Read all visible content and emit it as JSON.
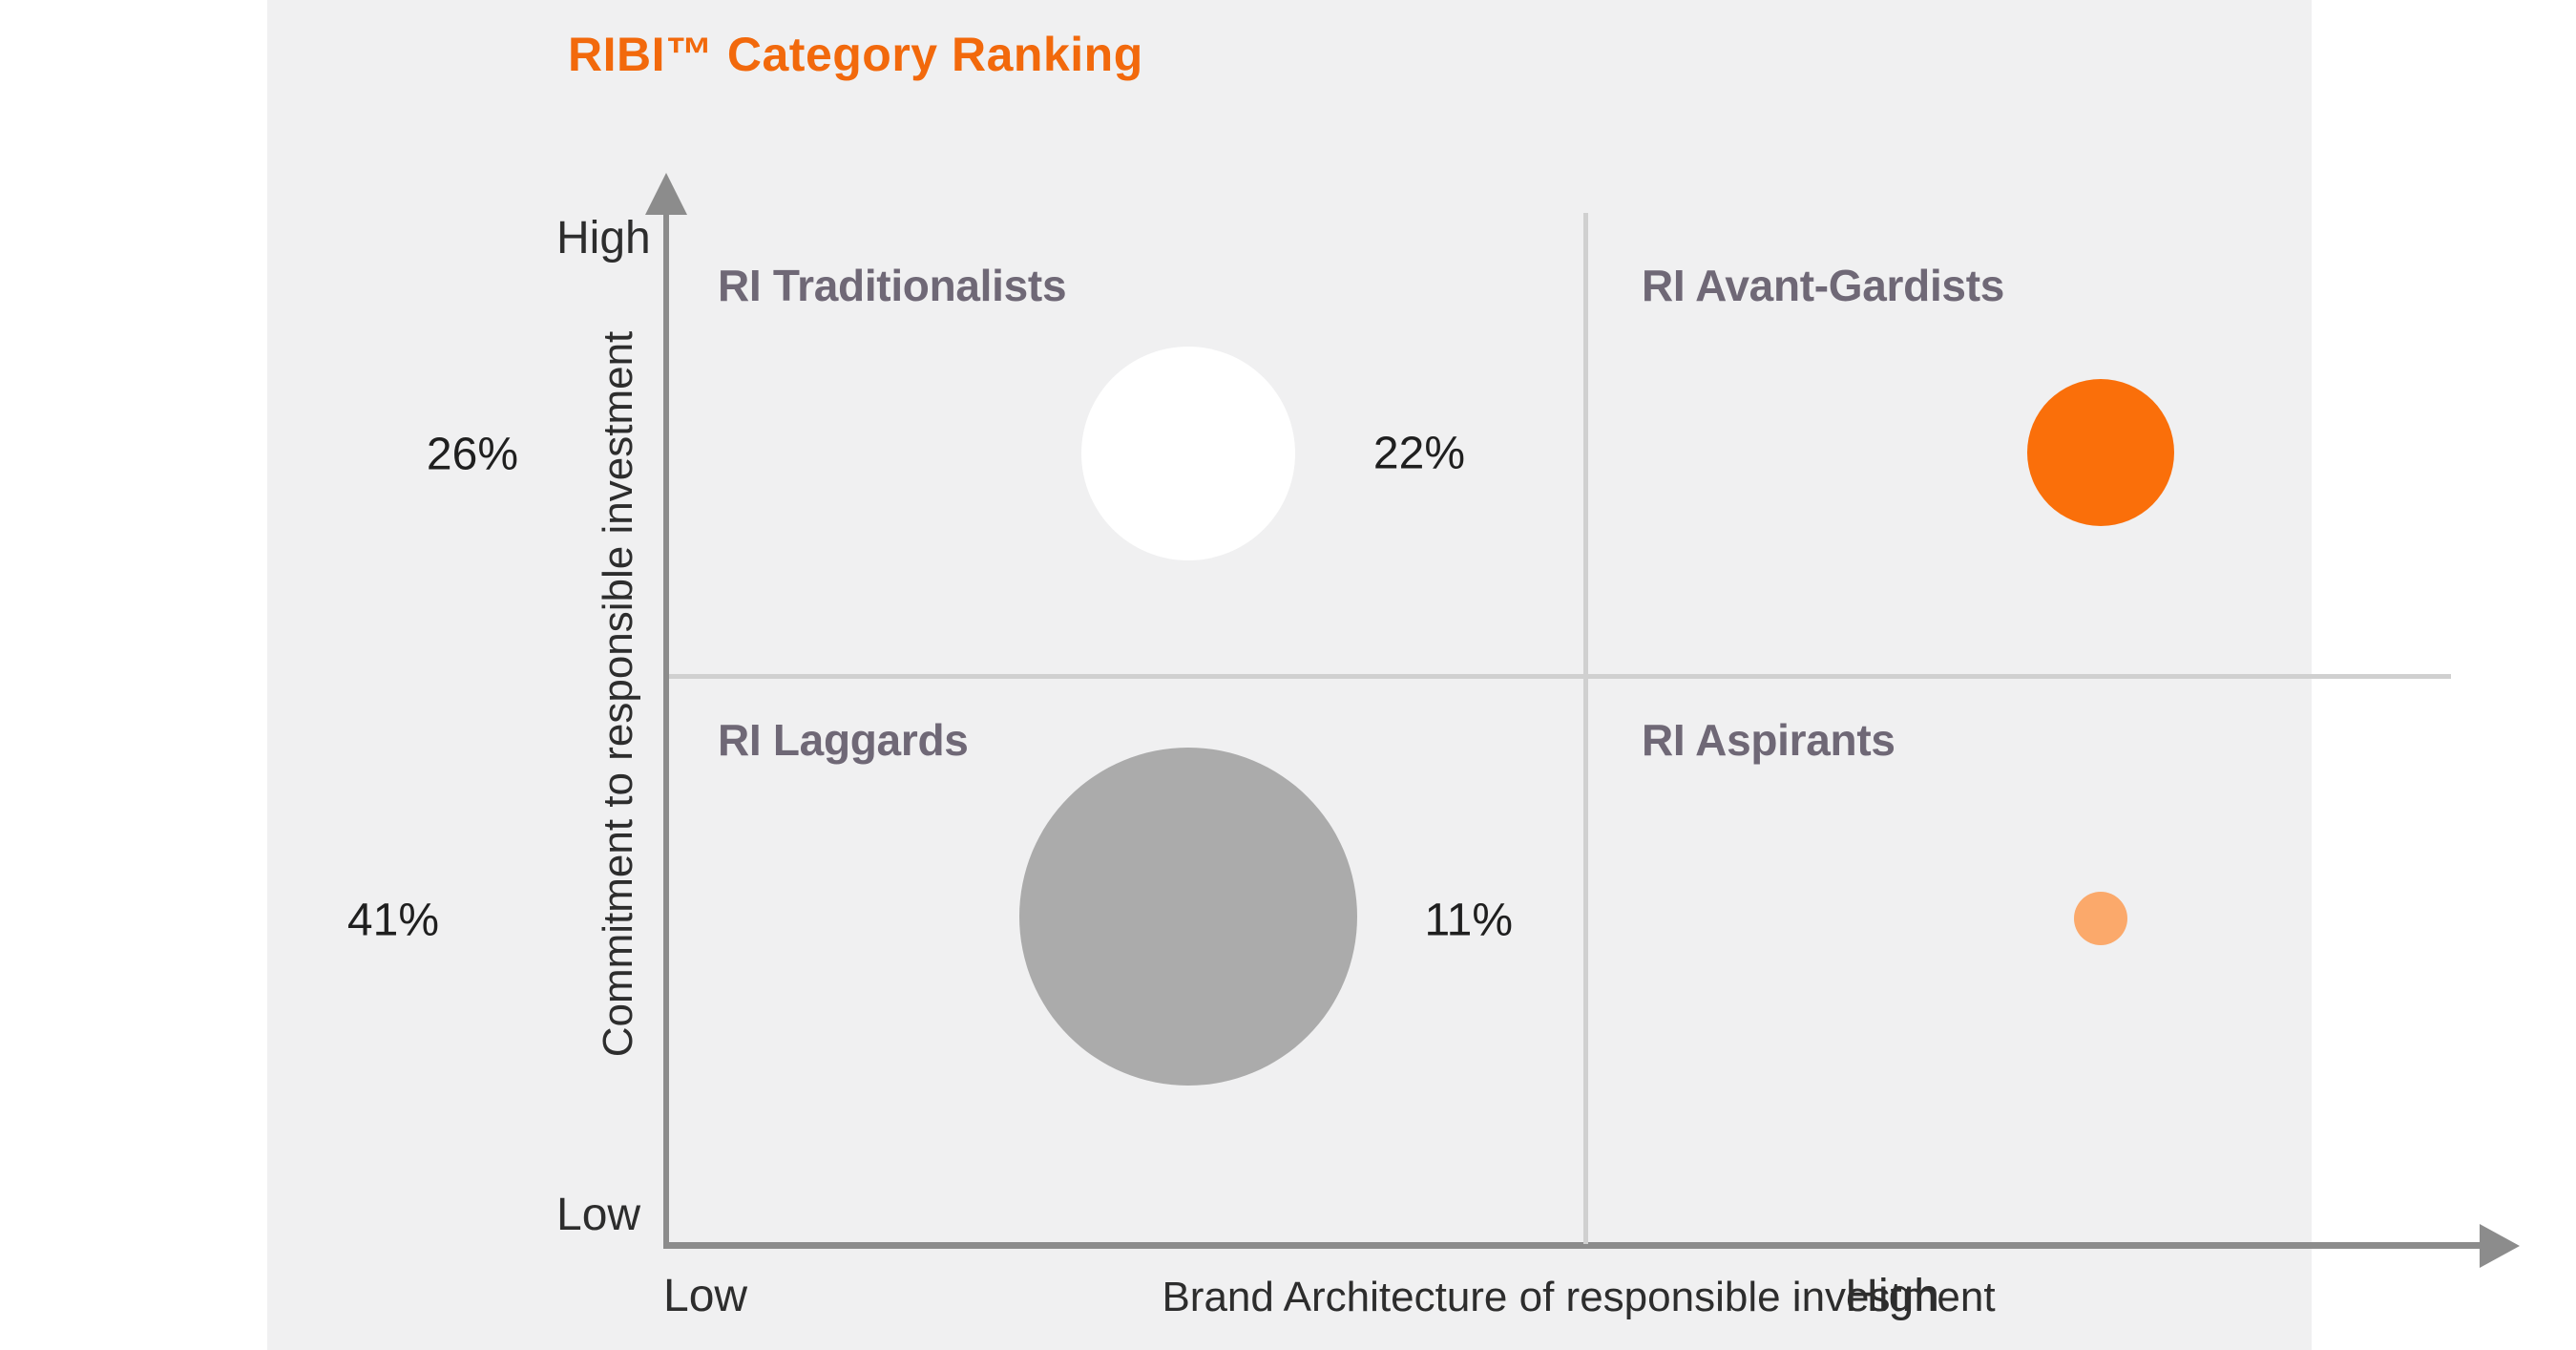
{
  "title": {
    "text": "RIBI™ Category Ranking",
    "color": "#F2690C"
  },
  "axes": {
    "y": {
      "label": "Commitment to responsible investment",
      "high": "High",
      "low": "Low"
    },
    "x": {
      "label": "Brand Architecture of responsible investment",
      "low": "Low",
      "high": "High"
    }
  },
  "quadrants": [
    {
      "id": "ri-traditionalists",
      "label": "RI Traditionalists",
      "value": "26%",
      "pct": 26,
      "position": "top-left",
      "bubble_color": "#FFFFFF"
    },
    {
      "id": "ri-avant-gardists",
      "label": "RI Avant-Gardists",
      "value": "22%",
      "pct": 22,
      "position": "top-right",
      "bubble_color": "#FA6F0A"
    },
    {
      "id": "ri-laggards",
      "label": "RI Laggards",
      "value": "41%",
      "pct": 41,
      "position": "bottom-left",
      "bubble_color": "#ABABAB"
    },
    {
      "id": "ri-aspirants",
      "label": "RI Aspirants",
      "value": "11%",
      "pct": 11,
      "position": "bottom-right",
      "bubble_color": "#FBA96B"
    }
  ],
  "chart_data": {
    "type": "scatter",
    "subtype": "quadrant-bubble",
    "title": "RIBI™ Category Ranking",
    "xlabel": "Brand Architecture of responsible investment",
    "ylabel": "Commitment to responsible investment",
    "x_range": [
      "Low",
      "High"
    ],
    "y_range": [
      "Low",
      "High"
    ],
    "grid": false,
    "legend": false,
    "series": [
      {
        "name": "RI Traditionalists",
        "x": "Low",
        "y": "High",
        "value_pct": 26,
        "color": "#FFFFFF"
      },
      {
        "name": "RI Avant-Gardists",
        "x": "High",
        "y": "High",
        "value_pct": 22,
        "color": "#FA6F0A"
      },
      {
        "name": "RI Laggards",
        "x": "Low",
        "y": "Low",
        "value_pct": 41,
        "color": "#ABABAB"
      },
      {
        "name": "RI Aspirants",
        "x": "High",
        "y": "Low",
        "value_pct": 11,
        "color": "#FBA96B"
      }
    ]
  },
  "colors": {
    "accent_orange": "#F2690C",
    "bubble_orange": "#FA6F0A",
    "bubble_light_orange": "#FBA96B",
    "bubble_gray": "#ABABAB",
    "bubble_white": "#FFFFFF",
    "panel_background": "#F0F0F1",
    "axis_line": "#8C8C8C",
    "divider_line": "#D0D0D0",
    "quadrant_label": "#6F6876",
    "text_dark": "#2D2D2D"
  }
}
